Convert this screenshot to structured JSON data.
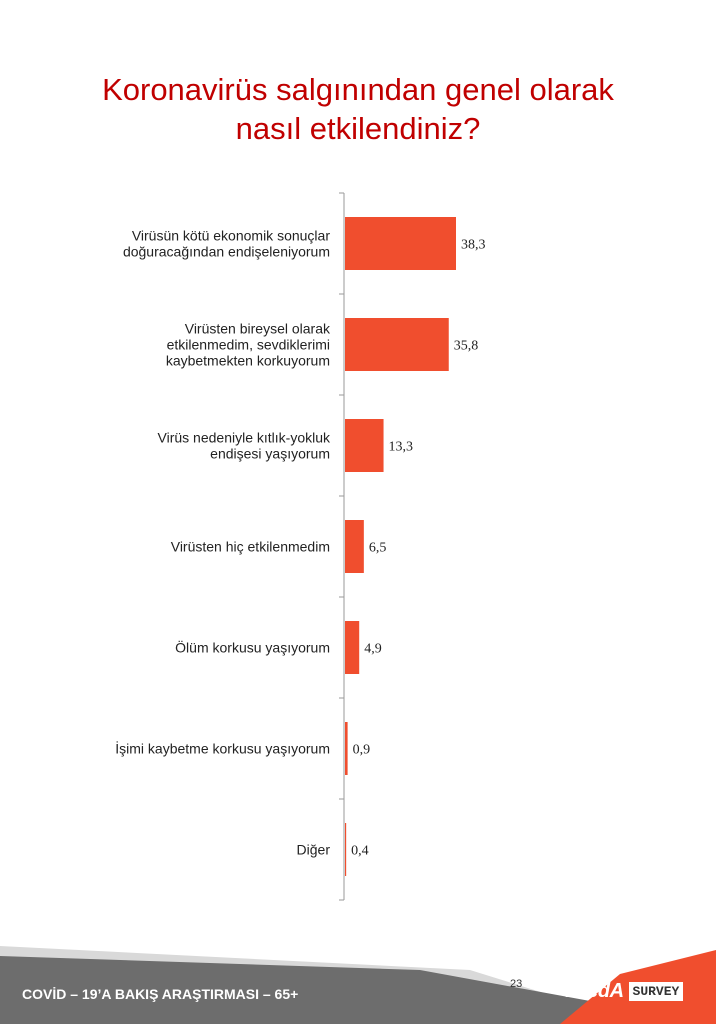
{
  "title": {
    "line1": "Koronavirüs salgınından genel olarak",
    "line2": "nasıl etkilendiniz?"
  },
  "chart_data": {
    "type": "bar",
    "orientation": "horizontal",
    "categories": [
      [
        "Virüsün kötü ekonomik sonuçlar",
        "doğuracağından endişeleniyorum"
      ],
      [
        "Virüsten bireysel olarak",
        "etkilenmedim, sevdiklerimi",
        "kaybetmekten korkuyorum"
      ],
      [
        "Virüs nedeniyle kıtlık-yokluk",
        "endişesi yaşıyorum"
      ],
      [
        "Virüsten hiç etkilenmedim"
      ],
      [
        "Ölüm korkusu yaşıyorum"
      ],
      [
        "İşimi kaybetme korkusu yaşıyorum"
      ],
      [
        "Diğer"
      ]
    ],
    "values": [
      38.3,
      35.8,
      13.3,
      6.5,
      4.9,
      0.9,
      0.4
    ],
    "value_labels": [
      "38,3",
      "35,8",
      "13,3",
      "6,5",
      "4,9",
      "0,9",
      "0,4"
    ],
    "bar_color": "#f04e2e",
    "axis_color": "#9a9a9a"
  },
  "footer": {
    "text": "COVİD – 19’A  BAKIŞ ARAŞTIRMASI – 65+",
    "page_number": "23",
    "logo_text": "ArеdA",
    "logo_survey": "SURVEY",
    "band_color": "#6d6d6d",
    "accent_color": "#f04e2e"
  }
}
